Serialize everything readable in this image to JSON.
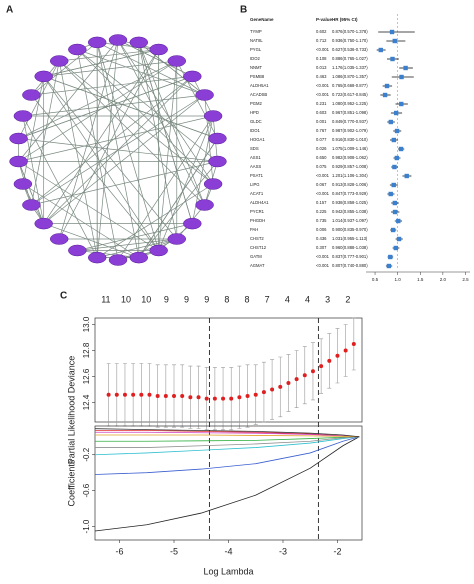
{
  "panel_labels": [
    "A",
    "B",
    "C"
  ],
  "chart_data": [
    {
      "type": "forest",
      "columns": [
        "GeneName",
        "P-value",
        "HR (95% CI)"
      ],
      "categories": [
        "TYMP",
        "NAT8L",
        "PYGL",
        "IDO2",
        "NNMT",
        "PSMB8",
        "ALDH5A1",
        "ACADSB",
        "PGM2",
        "HPD",
        "GLDC",
        "IDO1",
        "HOGA1",
        "SDS",
        "ASS1",
        "AASS",
        "PSAT1",
        "LIPG",
        "ACAT1",
        "ALDH4A1",
        "PYCR1",
        "PHGDH",
        "PAH",
        "CHST2",
        "CHST12",
        "GATM",
        "AGMAT"
      ],
      "p_values": [
        "0.602",
        "0.712",
        "<0.001",
        "0.108",
        "0.013",
        "0.463",
        "<0.001",
        "<0.001",
        "0.231",
        "0.603",
        "0.001",
        "0.767",
        "0.077",
        "0.026",
        "0.650",
        "0.075",
        "<0.001",
        "0.067",
        "<0.001",
        "0.157",
        "0.225",
        "0.735",
        "0.006",
        "0.436",
        "0.307",
        "<0.001",
        "<0.001"
      ],
      "values": [
        0.876,
        0.936,
        0.627,
        0.886,
        1.176,
        1.086,
        0.765,
        0.722,
        1.08,
        0.967,
        0.849,
        0.987,
        0.916,
        1.075,
        0.982,
        0.929,
        1.201,
        0.913,
        0.847,
        0.938,
        0.942,
        1.014,
        0.9,
        1.031,
        0.96,
        0.837,
        0.807
      ],
      "lower": [
        0.57,
        0.75,
        0.536,
        0.765,
        1.035,
        0.87,
        0.668,
        0.617,
        0.952,
        0.851,
        0.77,
        0.902,
        0.83,
        1.009,
        0.908,
        0.857,
        1.106,
        0.828,
        0.773,
        0.858,
        0.855,
        0.937,
        0.835,
        0.955,
        0.888,
        0.777,
        0.74
      ],
      "upper": [
        1.378,
        1.17,
        0.733,
        1.027,
        1.337,
        1.357,
        0.877,
        0.845,
        1.225,
        1.098,
        0.937,
        1.079,
        1.01,
        1.146,
        1.062,
        1.008,
        1.304,
        1.006,
        0.929,
        1.025,
        1.038,
        1.097,
        0.97,
        1.113,
        1.038,
        0.901,
        0.88
      ],
      "value_labels": [
        "0.876(0.570-1.378)",
        "0.936(0.750-1.170)",
        "0.627(0.536-0.733)",
        "0.886(0.765-1.027)",
        "1.176(1.035-1.337)",
        "1.086(0.870-1.357)",
        "0.765(0.668-0.877)",
        "0.722(0.617-0.845)",
        "1.080(0.952-1.225)",
        "0.967(0.851-1.098)",
        "0.849(0.770-0.937)",
        "0.987(0.902-1.079)",
        "0.916(0.830-1.010)",
        "1.075(1.009-1.146)",
        "0.982(0.908-1.062)",
        "0.929(0.857-1.008)",
        "1.201(1.106-1.304)",
        "0.913(0.828-1.006)",
        "0.847(0.773-0.929)",
        "0.938(0.858-1.025)",
        "0.942(0.855-1.038)",
        "1.014(0.937-1.097)",
        "0.900(0.835-0.970)",
        "1.031(0.955-1.113)",
        "0.960(0.888-1.038)",
        "0.837(0.777-0.901)",
        "0.807(0.740-0.880)"
      ],
      "color": "#3b7fcf",
      "xlim": [
        0.3,
        2.6
      ],
      "xticks": [
        0.5,
        {
          "value": 1,
          "label": "1.0"
        },
        1.5,
        {
          "value": 2,
          "label": "2.0"
        },
        2.5
      ],
      "reference_line": 1
    },
    {
      "type": "errorbar",
      "ylabel": "Partial Likelihood Deviance",
      "color": "#e02020",
      "x": [
        -6.2,
        -6.05,
        -5.9,
        -5.75,
        -5.6,
        -5.45,
        -5.3,
        -5.15,
        -5.0,
        -4.85,
        -4.7,
        -4.55,
        -4.4,
        -4.25,
        -4.1,
        -3.95,
        -3.8,
        -3.65,
        -3.5,
        -3.35,
        -3.2,
        -3.05,
        -2.9,
        -2.75,
        -2.6,
        -2.45,
        -2.3,
        -2.15,
        -2.0,
        -1.85,
        -1.7
      ],
      "values": [
        12.46,
        12.46,
        12.46,
        12.46,
        12.46,
        12.46,
        12.45,
        12.45,
        12.45,
        12.45,
        12.44,
        12.44,
        12.43,
        12.43,
        12.43,
        12.43,
        12.44,
        12.45,
        12.46,
        12.48,
        12.5,
        12.52,
        12.55,
        12.58,
        12.61,
        12.64,
        12.68,
        12.72,
        12.76,
        12.8,
        12.85
      ],
      "errors": [
        0.24,
        0.24,
        0.24,
        0.24,
        0.24,
        0.24,
        0.24,
        0.24,
        0.24,
        0.24,
        0.24,
        0.24,
        0.24,
        0.24,
        0.24,
        0.24,
        0.24,
        0.24,
        0.23,
        0.23,
        0.23,
        0.23,
        0.22,
        0.22,
        0.22,
        0.22,
        0.21,
        0.21,
        0.21,
        0.2,
        0.2
      ],
      "xlim": [
        -6.45,
        -1.55
      ],
      "ylim": [
        12.25,
        13.05
      ],
      "yticks": [
        12.4,
        12.6,
        12.8,
        {
          "value": 13,
          "label": "13.0"
        }
      ],
      "top_xticks": [
        {
          "value": -6.25,
          "label": "11"
        },
        {
          "value": -5.88,
          "label": "10"
        },
        {
          "value": -5.51,
          "label": "10"
        },
        {
          "value": -5.14,
          "label": "9"
        },
        {
          "value": -4.77,
          "label": "9"
        },
        {
          "value": -4.4,
          "label": "9"
        },
        {
          "value": -4.03,
          "label": "8"
        },
        {
          "value": -3.66,
          "label": "8"
        },
        {
          "value": -3.29,
          "label": "7"
        },
        {
          "value": -2.92,
          "label": "4"
        },
        {
          "value": -2.55,
          "label": "4"
        },
        {
          "value": -2.18,
          "label": "3"
        },
        {
          "value": -1.81,
          "label": "2"
        }
      ],
      "vlines": [
        -4.35,
        -2.35
      ]
    },
    {
      "type": "line",
      "xlabel": "Log Lambda",
      "ylabel": "Coefficients",
      "x": [
        -6.45,
        -5.5,
        -4.5,
        -3.5,
        -2.5,
        -1.9,
        -1.6
      ],
      "series": [
        {
          "color": "#222222",
          "values": [
            -1.05,
            -0.98,
            -0.85,
            -0.65,
            -0.35,
            -0.1,
            0
          ]
        },
        {
          "color": "#3a5fd0",
          "values": [
            -0.42,
            -0.4,
            -0.36,
            -0.3,
            -0.18,
            -0.05,
            0
          ]
        },
        {
          "color": "#e03030",
          "values": [
            0.07,
            0.07,
            0.06,
            0.05,
            0.03,
            0.01,
            0
          ]
        },
        {
          "color": "#d040c0",
          "values": [
            0.05,
            0.05,
            0.045,
            0.04,
            0.025,
            0.01,
            0
          ]
        },
        {
          "color": "#30b040",
          "values": [
            -0.05,
            -0.05,
            -0.045,
            -0.04,
            -0.02,
            -0.005,
            0
          ]
        },
        {
          "color": "#30c0d0",
          "values": [
            -0.2,
            -0.18,
            -0.15,
            -0.12,
            -0.07,
            -0.02,
            0
          ]
        },
        {
          "color": "#909090",
          "values": [
            -0.12,
            -0.12,
            -0.1,
            -0.08,
            -0.05,
            -0.01,
            0
          ]
        },
        {
          "color": "#e0a020",
          "values": [
            0.02,
            0.02,
            0.02,
            0.015,
            0.01,
            0.005,
            0
          ]
        },
        {
          "color": "#333333",
          "values": [
            0.09,
            0.08,
            0.07,
            0.06,
            0.04,
            0.02,
            0
          ]
        }
      ],
      "xlim": [
        -6.45,
        -1.55
      ],
      "ylim": [
        -1.15,
        0.12
      ],
      "xticks": [
        -6,
        -5,
        -4,
        -3,
        -2
      ],
      "yticks": [
        {
          "value": -1,
          "label": "-1.0"
        },
        -0.6,
        -0.2
      ]
    }
  ]
}
